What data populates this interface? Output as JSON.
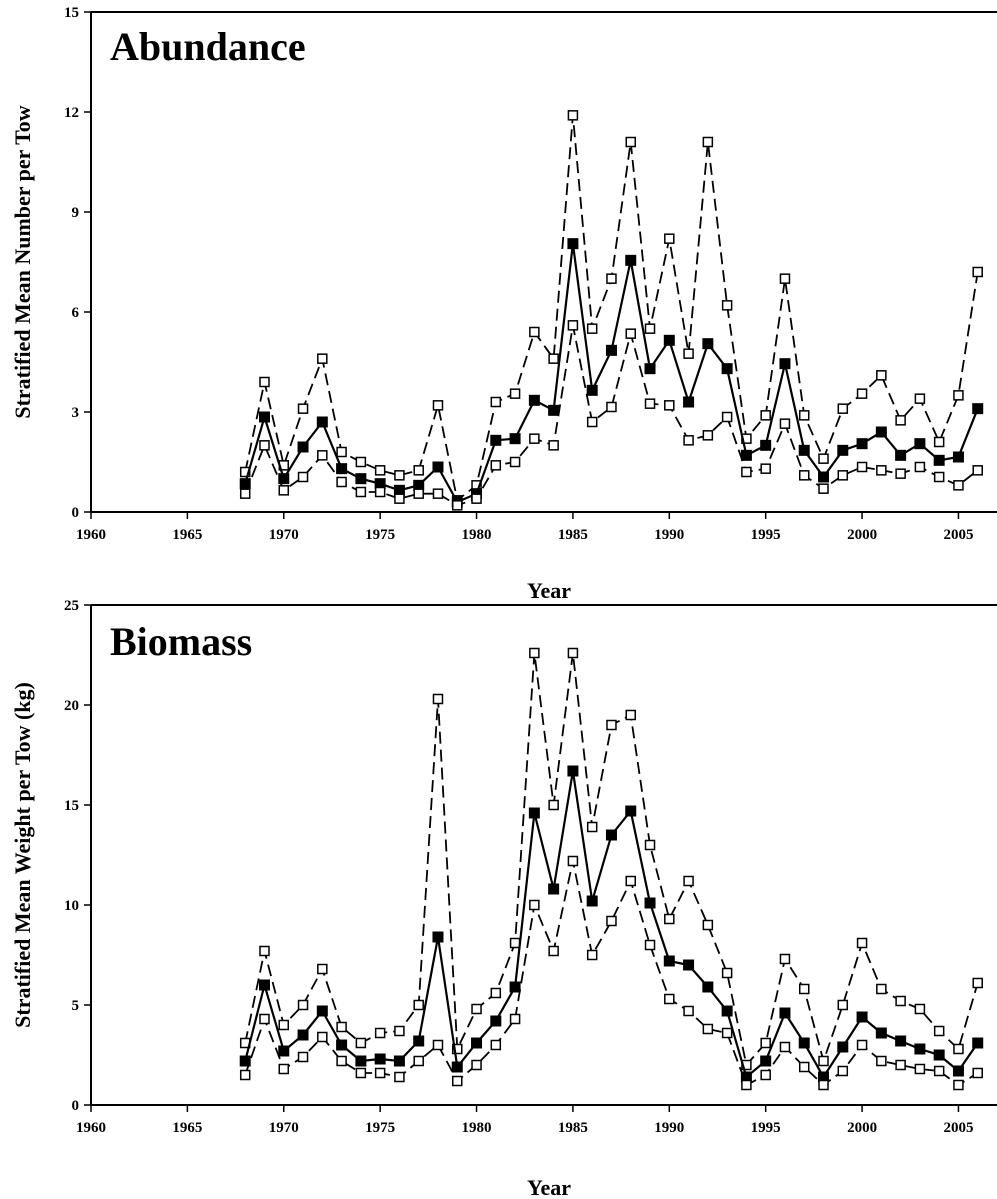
{
  "chart_data": [
    {
      "type": "line",
      "title": "Abundance",
      "xlabel": "Year",
      "ylabel": "Stratified Mean Number per Tow",
      "xlim": [
        1960,
        2007
      ],
      "ylim": [
        0,
        15
      ],
      "xticks": [
        1960,
        1965,
        1970,
        1975,
        1980,
        1985,
        1990,
        1995,
        2000,
        2005
      ],
      "yticks": [
        0,
        3,
        6,
        9,
        12,
        15
      ],
      "grid": false,
      "x": [
        1968,
        1969,
        1970,
        1971,
        1972,
        1973,
        1974,
        1975,
        1976,
        1977,
        1978,
        1979,
        1980,
        1981,
        1982,
        1983,
        1984,
        1985,
        1986,
        1987,
        1988,
        1989,
        1990,
        1991,
        1992,
        1993,
        1994,
        1995,
        1996,
        1997,
        1998,
        1999,
        2000,
        2001,
        2002,
        2003,
        2004,
        2005,
        2006
      ],
      "series": [
        {
          "style": "dashed-open-square",
          "values": [
            1.2,
            3.9,
            1.4,
            3.1,
            4.6,
            1.8,
            1.5,
            1.25,
            1.1,
            1.25,
            3.2,
            0.35,
            0.8,
            3.3,
            3.55,
            5.4,
            4.6,
            11.9,
            5.5,
            7.0,
            11.1,
            5.5,
            8.2,
            4.75,
            11.1,
            6.2,
            2.2,
            2.9,
            7.0,
            2.9,
            1.6,
            3.1,
            3.55,
            4.1,
            2.75,
            3.4,
            2.1,
            3.5,
            7.2
          ]
        },
        {
          "style": "solid-filled-square",
          "values": [
            0.85,
            2.85,
            1.0,
            1.95,
            2.7,
            1.3,
            1.0,
            0.85,
            0.65,
            0.8,
            1.35,
            0.3,
            0.55,
            2.15,
            2.2,
            3.35,
            3.05,
            8.05,
            3.65,
            4.85,
            7.55,
            4.3,
            5.15,
            3.3,
            5.05,
            4.3,
            1.7,
            2.0,
            4.45,
            1.85,
            1.05,
            1.85,
            2.05,
            2.4,
            1.7,
            2.05,
            1.55,
            1.65,
            3.1
          ]
        },
        {
          "style": "dashed-open-square",
          "values": [
            0.55,
            2.0,
            0.65,
            1.05,
            1.7,
            0.9,
            0.6,
            0.6,
            0.4,
            0.55,
            0.55,
            0.2,
            0.4,
            1.4,
            1.5,
            2.2,
            2.0,
            5.6,
            2.7,
            3.15,
            5.35,
            3.25,
            3.2,
            2.15,
            2.3,
            2.85,
            1.2,
            1.3,
            2.65,
            1.1,
            0.7,
            1.1,
            1.35,
            1.25,
            1.15,
            1.35,
            1.05,
            0.8,
            1.25
          ]
        }
      ]
    },
    {
      "type": "line",
      "title": "Biomass",
      "xlabel": "Year",
      "ylabel": "Stratified Mean Weight per Tow (kg)",
      "xlim": [
        1960,
        2007
      ],
      "ylim": [
        0,
        25
      ],
      "xticks": [
        1960,
        1965,
        1970,
        1975,
        1980,
        1985,
        1990,
        1995,
        2000,
        2005
      ],
      "yticks": [
        0,
        5,
        10,
        15,
        20,
        25
      ],
      "grid": false,
      "x": [
        1968,
        1969,
        1970,
        1971,
        1972,
        1973,
        1974,
        1975,
        1976,
        1977,
        1978,
        1979,
        1980,
        1981,
        1982,
        1983,
        1984,
        1985,
        1986,
        1987,
        1988,
        1989,
        1990,
        1991,
        1992,
        1993,
        1994,
        1995,
        1996,
        1997,
        1998,
        1999,
        2000,
        2001,
        2002,
        2003,
        2004,
        2005,
        2006
      ],
      "series": [
        {
          "style": "dashed-open-square",
          "values": [
            3.1,
            7.7,
            4.0,
            5.0,
            6.8,
            3.9,
            3.1,
            3.6,
            3.7,
            5.0,
            20.3,
            2.8,
            4.8,
            5.6,
            8.1,
            22.6,
            15.0,
            22.6,
            13.9,
            19.0,
            19.5,
            13.0,
            9.3,
            11.2,
            9.0,
            6.6,
            2.0,
            3.1,
            7.3,
            5.8,
            2.2,
            5.0,
            8.1,
            5.8,
            5.2,
            4.8,
            3.7,
            2.8,
            6.1
          ]
        },
        {
          "style": "solid-filled-square",
          "values": [
            2.2,
            6.0,
            2.7,
            3.5,
            4.7,
            3.0,
            2.2,
            2.3,
            2.2,
            3.2,
            8.4,
            1.9,
            3.1,
            4.2,
            5.9,
            14.6,
            10.8,
            16.7,
            10.2,
            13.5,
            14.7,
            10.1,
            7.2,
            7.0,
            5.9,
            4.7,
            1.4,
            2.2,
            4.6,
            3.1,
            1.4,
            2.9,
            4.4,
            3.6,
            3.2,
            2.8,
            2.5,
            1.7,
            3.1
          ]
        },
        {
          "style": "dashed-open-square",
          "values": [
            1.5,
            4.3,
            1.8,
            2.4,
            3.4,
            2.2,
            1.6,
            1.6,
            1.4,
            2.2,
            3.0,
            1.2,
            2.0,
            3.0,
            4.3,
            10.0,
            7.7,
            12.2,
            7.5,
            9.2,
            11.2,
            8.0,
            5.3,
            4.7,
            3.8,
            3.6,
            1.0,
            1.5,
            2.9,
            1.9,
            1.0,
            1.7,
            3.0,
            2.2,
            2.0,
            1.8,
            1.7,
            1.0,
            1.6
          ]
        }
      ]
    }
  ]
}
